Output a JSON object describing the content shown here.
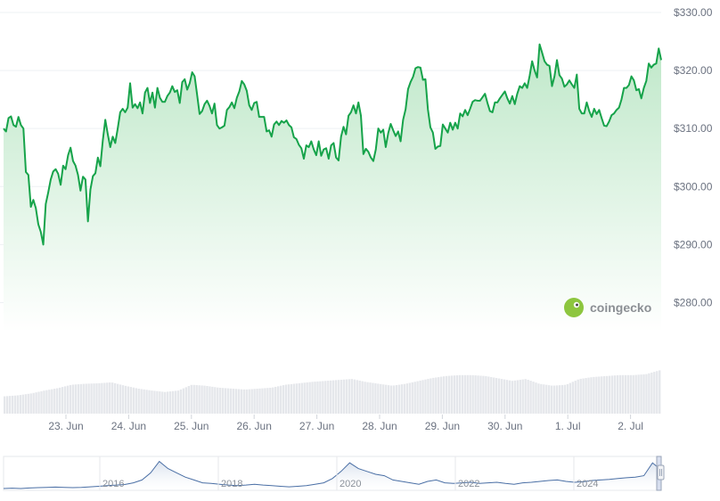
{
  "brand": {
    "name": "coingecko",
    "color": "#8dc63f"
  },
  "colors": {
    "line": "#16a34a",
    "area_top": "#bfe8c9",
    "volume": "#e5e7eb",
    "nav_line": "#4a6fa5"
  },
  "chart_data": [
    {
      "type": "area",
      "title": "",
      "xlabel": "",
      "ylabel": "",
      "ylim": [
        275,
        330
      ],
      "y_ticks": [
        "$330.00",
        "$320.00",
        "$310.00",
        "$300.00",
        "$290.00",
        "$280.00"
      ],
      "x_ticks": [
        "23. Jun",
        "24. Jun",
        "25. Jun",
        "26. Jun",
        "27. Jun",
        "28. Jun",
        "29. Jun",
        "30. Jun",
        "1. Jul",
        "2. Jul"
      ],
      "x_range": [
        "22. Jun 12:00",
        "2. Jul 18:00"
      ],
      "grid": true,
      "series": [
        {
          "values": [
            310.0,
            309.5,
            311.8,
            312.1,
            310.6,
            310.3,
            312.0,
            310.6,
            310.0,
            302.5,
            302.0,
            296.5,
            297.7,
            296.3,
            293.5,
            292.2,
            290.0,
            297.0,
            299.0,
            301.2,
            302.6,
            303.0,
            302.2,
            300.3,
            303.6,
            303.0,
            305.4,
            306.7,
            304.4,
            303.6,
            302.0,
            299.3,
            301.7,
            301.2,
            294.0,
            299.5,
            301.8,
            302.3,
            305.0,
            303.5,
            308.0,
            311.5,
            309.0,
            306.8,
            308.6,
            307.5,
            310.0,
            312.8,
            313.4,
            312.8,
            313.6,
            317.8,
            313.6,
            314.2,
            313.5,
            314.5,
            312.6,
            316.2,
            317.0,
            314.4,
            316.2,
            313.6,
            317.0,
            315.3,
            314.6,
            314.6,
            315.6,
            316.2,
            317.3,
            316.3,
            316.6,
            314.4,
            318.0,
            318.5,
            316.7,
            317.8,
            319.7,
            319.0,
            315.8,
            312.5,
            313.0,
            314.2,
            314.8,
            313.9,
            312.6,
            314.3,
            310.6,
            310.0,
            310.2,
            310.5,
            313.2,
            313.7,
            314.5,
            313.5,
            315.3,
            316.4,
            318.2,
            317.6,
            316.5,
            314.0,
            313.2,
            314.4,
            314.6,
            312.0,
            312.0,
            312.0,
            309.5,
            309.7,
            308.6,
            310.7,
            311.2,
            310.6,
            311.3,
            311.0,
            311.4,
            310.6,
            310.2,
            308.5,
            308.2,
            307.2,
            306.6,
            304.8,
            307.1,
            306.8,
            307.8,
            306.4,
            305.4,
            307.8,
            305.3,
            306.4,
            306.6,
            304.8,
            307.1,
            307.5,
            305.0,
            304.5,
            308.6,
            310.3,
            309.0,
            312.2,
            312.8,
            314.0,
            312.6,
            314.5,
            312.2,
            305.6,
            306.5,
            306.0,
            305.0,
            304.4,
            306.4,
            310.0,
            309.3,
            309.8,
            306.8,
            309.2,
            310.8,
            309.7,
            308.7,
            309.5,
            307.8,
            311.5,
            313.3,
            316.8,
            318.0,
            318.9,
            320.4,
            320.6,
            320.5,
            318.4,
            318.5,
            313.3,
            310.2,
            309.3,
            306.5,
            306.9,
            307.0,
            310.7,
            310.0,
            309.3,
            311.0,
            309.8,
            311.0,
            310.0,
            312.6,
            312.1,
            313.2,
            312.3,
            313.4,
            314.6,
            314.9,
            314.8,
            314.8,
            315.4,
            316.0,
            314.4,
            313.0,
            312.8,
            314.5,
            314.5,
            315.2,
            315.8,
            316.4,
            315.2,
            314.3,
            315.6,
            314.2,
            316.0,
            317.3,
            317.0,
            317.8,
            317.0,
            319.1,
            321.6,
            320.0,
            318.8,
            324.5,
            323.1,
            321.6,
            321.0,
            320.8,
            317.3,
            319.0,
            321.8,
            319.2,
            318.6,
            317.2,
            317.6,
            318.3,
            317.6,
            317.0,
            319.3,
            313.4,
            312.6,
            312.6,
            314.5,
            313.0,
            312.0,
            313.4,
            312.5,
            313.2,
            311.8,
            310.5,
            310.4,
            311.2,
            312.3,
            312.6,
            313.2,
            313.6,
            315.0,
            317.0,
            317.0,
            317.5,
            319.0,
            318.3,
            316.6,
            316.8,
            315.2,
            317.0,
            318.2,
            321.2,
            320.5,
            321.0,
            321.2,
            323.8,
            321.8
          ]
        }
      ]
    },
    {
      "type": "bar",
      "title": "",
      "xlabel": "",
      "ylabel": "",
      "values": [
        0.36,
        0.38,
        0.42,
        0.48,
        0.53,
        0.6,
        0.62,
        0.63,
        0.65,
        0.58,
        0.52,
        0.48,
        0.45,
        0.48,
        0.6,
        0.58,
        0.54,
        0.52,
        0.5,
        0.52,
        0.54,
        0.6,
        0.63,
        0.66,
        0.68,
        0.7,
        0.72,
        0.66,
        0.62,
        0.58,
        0.62,
        0.68,
        0.74,
        0.78,
        0.8,
        0.8,
        0.78,
        0.73,
        0.68,
        0.72,
        0.62,
        0.58,
        0.6,
        0.72,
        0.76,
        0.78,
        0.8,
        0.8,
        0.82,
        0.9
      ]
    },
    {
      "type": "line",
      "title": "",
      "xlabel": "",
      "ylabel": "",
      "x_ticks": [
        "2016",
        "2018",
        "2020",
        "2022",
        "2024"
      ],
      "values": [
        0.0,
        0.01,
        0.0,
        0.02,
        0.03,
        0.04,
        0.05,
        0.04,
        0.03,
        0.04,
        0.06,
        0.08,
        0.1,
        0.12,
        0.14,
        0.2,
        0.3,
        0.55,
        0.95,
        0.7,
        0.55,
        0.4,
        0.3,
        0.2,
        0.18,
        0.15,
        0.12,
        0.1,
        0.12,
        0.15,
        0.12,
        0.1,
        0.08,
        0.06,
        0.08,
        0.1,
        0.15,
        0.2,
        0.35,
        0.6,
        0.9,
        0.7,
        0.6,
        0.5,
        0.45,
        0.3,
        0.25,
        0.2,
        0.15,
        0.25,
        0.3,
        0.2,
        0.18,
        0.2,
        0.22,
        0.18,
        0.2,
        0.22,
        0.18,
        0.15,
        0.2,
        0.22,
        0.25,
        0.28,
        0.3,
        0.25,
        0.22,
        0.24,
        0.28,
        0.3,
        0.32,
        0.35,
        0.38,
        0.4,
        0.45,
        0.9,
        0.65
      ]
    }
  ]
}
